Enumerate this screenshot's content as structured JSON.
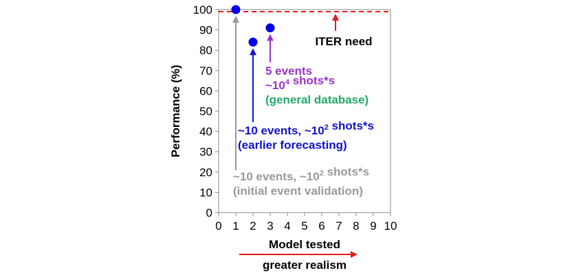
{
  "chart_data": {
    "type": "scatter",
    "title": "",
    "xlabel": "Model tested",
    "ylabel": "Performance (%)",
    "xlim": [
      0,
      10
    ],
    "ylim": [
      0,
      100
    ],
    "x_ticks": [
      "0",
      "1",
      "2",
      "3",
      "4",
      "5",
      "6",
      "7",
      "8",
      "9",
      "10"
    ],
    "y_ticks": [
      "0",
      "10",
      "20",
      "30",
      "40",
      "50",
      "60",
      "70",
      "80",
      "90",
      "100"
    ],
    "grid": false,
    "points": [
      {
        "x": 1,
        "y": 100
      },
      {
        "x": 2,
        "y": 84
      },
      {
        "x": 3,
        "y": 91
      }
    ],
    "point_color": "#0000ee",
    "reference_line": {
      "y": 99,
      "label": "ITER need",
      "color": "#e31a1c"
    },
    "annotations": [
      {
        "lines": [
          "5 events",
          "~10|4| shots*s",
          "(general database)"
        ],
        "colors": [
          "#9933cc",
          "#9933cc",
          "#22aa66"
        ]
      },
      {
        "lines": [
          "~10 events, ~10|2| shots*s",
          "(earlier forecasting)"
        ],
        "colors": [
          "#1010cc",
          "#1010cc"
        ]
      },
      {
        "lines": [
          "~10 events, ~10|2| shots*s",
          "(initial event validation)"
        ],
        "colors": [
          "#999999",
          "#999999"
        ]
      }
    ],
    "realism_label": "greater realism",
    "realism_color": "#e31a1c"
  }
}
